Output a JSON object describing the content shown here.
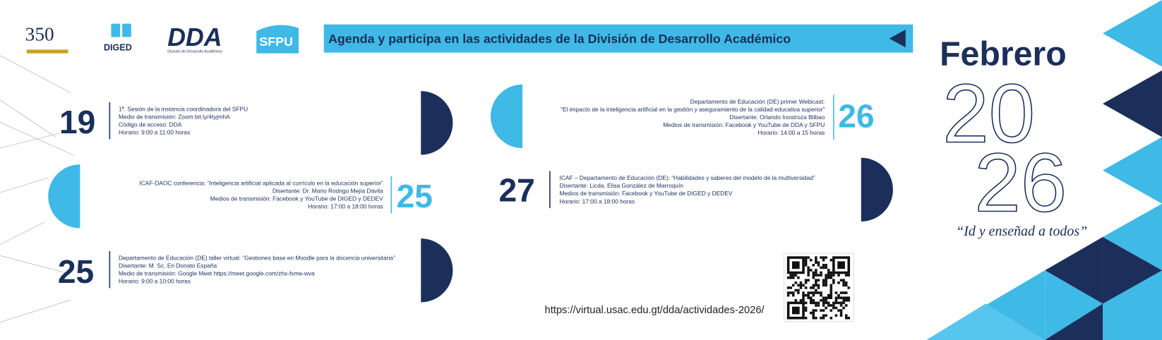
{
  "logos": {
    "anniversary": "350",
    "diged": "DIGED",
    "dda": "DDA",
    "dda_subtitle": "División de Desarrollo Académico",
    "sfpu": "SFPU"
  },
  "banner": "Agenda y participa en las actividades de la División de Desarrollo Académico",
  "month": "Febrero",
  "year_top": "20",
  "year_bottom": "26",
  "motto": "“Id y enseñad a todos”",
  "events": [
    {
      "day": "19",
      "lines": [
        "1ª. Sesión de la instancia coordinadora del SFPU",
        "Medio de transmisión: Zoom bit.ly/4tyjmhA",
        "Código de acceso: DDA",
        "Horario: 9:00 a 11:00 horas"
      ]
    },
    {
      "day": "25",
      "lines": [
        "ICAF-DAOC conferencia: “Inteligencia artificial aplicada al currículo en la educación superior”",
        "Disertante: Dr. Mario Rodrigo Mejía Dávila",
        "Medios de transmisión: Facebook y YouTube de DIGED y DEDEV",
        "Horario: 17:00 a 18:00 horas"
      ]
    },
    {
      "day": "25",
      "lines": [
        "Departamento de Educación (DE) taller virtual: “Gestiones base en Moodle para la docencia universitaria”",
        "Disertante: M. Sc. Eri Donato España",
        "Medio de transmisión: Google Meet https://meet.google.com/zhx-fxme-wva",
        "Horario: 9:00 a 10:00 horas"
      ]
    },
    {
      "day": "26",
      "lines": [
        "Departamento de Educación (DE) primer Webicast:",
        "“El impacto de la inteligencia artificial en la gestión y aseguramiento de la calidad educativa superior”",
        "Disertante: Orlando Inostroza Bilbao",
        "Medios de transmisión: Facebook y YouTube de DDA y SFPU",
        "Horario: 14:00 a 15 horas"
      ]
    },
    {
      "day": "27",
      "lines": [
        "ICAF – Departamento de Educación (DE): “Habilidades y saberes del modelo de la multiversidad”",
        "Disertante: Licda. Elisa González de Marroquín",
        "Medios de transmisión: Facebook y YouTube de DIGED y DEDEV",
        "Horario: 17:00 a 18:00 horas"
      ]
    }
  ],
  "url": "https://virtual.usac.edu.gt/dda/actividades-2026/"
}
